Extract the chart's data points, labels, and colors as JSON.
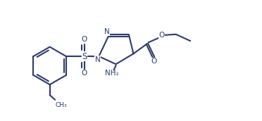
{
  "bg_color": "#ffffff",
  "line_color": "#2d3a6b",
  "line_width": 1.5,
  "figsize": [
    3.72,
    1.72
  ],
  "dpi": 100,
  "xlim": [
    0,
    10
  ],
  "ylim": [
    0,
    4.6
  ]
}
